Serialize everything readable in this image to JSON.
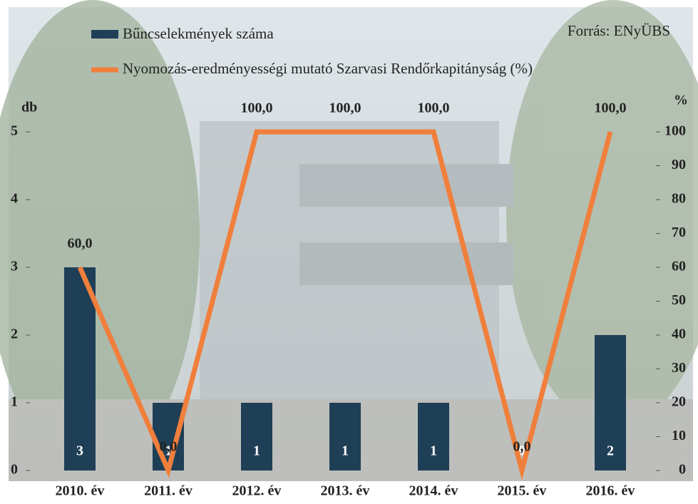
{
  "chart_data": {
    "type": "bar",
    "source": "Forrás: ENyÜBS",
    "y_label": "db",
    "y2_label": "%",
    "categories": [
      "2010. év",
      "2011. év",
      "2012. év",
      "2013. év",
      "2014. év",
      "2015. év",
      "2016. év"
    ],
    "series": [
      {
        "name": "Bűncselekmények száma",
        "type": "bar",
        "color": "#1f3f57",
        "values": [
          3,
          1,
          1,
          1,
          1,
          0,
          2
        ]
      },
      {
        "name": "Nyomozás-eredményességi mutató Szarvasi Rendőrkapitányság (%)",
        "type": "line",
        "axis": "y2",
        "color": "#f07f3c",
        "values": [
          60,
          0,
          100,
          100,
          100,
          0,
          100
        ],
        "value_labels": [
          "60,0",
          "0,0",
          "100,0",
          "100,0",
          "100,0",
          "0,0",
          "100,0"
        ]
      }
    ],
    "ylim": [
      0,
      5
    ],
    "yticks": [
      0,
      1,
      2,
      3,
      4,
      5
    ],
    "y2lim": [
      0,
      100
    ],
    "y2ticks": [
      0,
      10,
      20,
      30,
      40,
      50,
      60,
      70,
      80,
      90,
      100
    ]
  }
}
